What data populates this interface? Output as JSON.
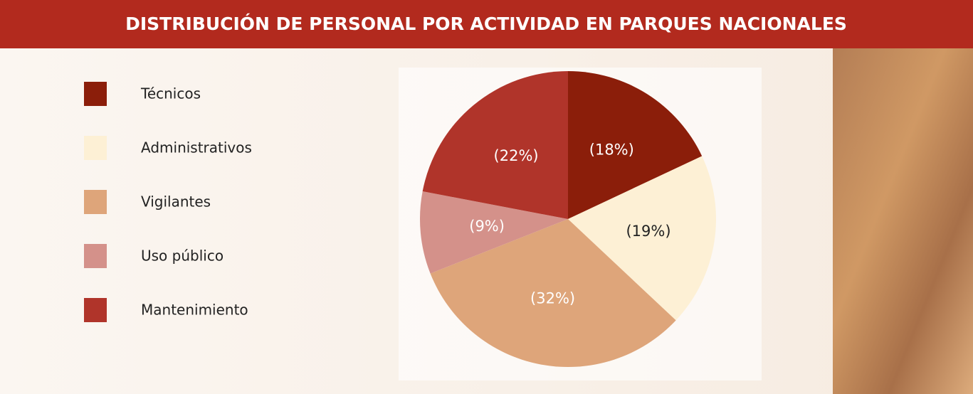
{
  "chart_data": {
    "type": "pie",
    "title": "DISTRIBUCIÓN DE PERSONAL POR ACTIVIDAD EN PARQUES NACIONALES",
    "categories": [
      "Técnicos",
      "Administrativos",
      "Vigilantes",
      "Uso público",
      "Mantenimiento"
    ],
    "values": [
      18,
      19,
      32,
      9,
      22
    ],
    "value_labels": [
      "(18%)",
      "(19%)",
      "(32%)",
      "(9%)",
      "(22%)"
    ],
    "colors": [
      "#8b1e0a",
      "#fdf0d5",
      "#dea57a",
      "#d4918a",
      "#b0342a"
    ]
  }
}
